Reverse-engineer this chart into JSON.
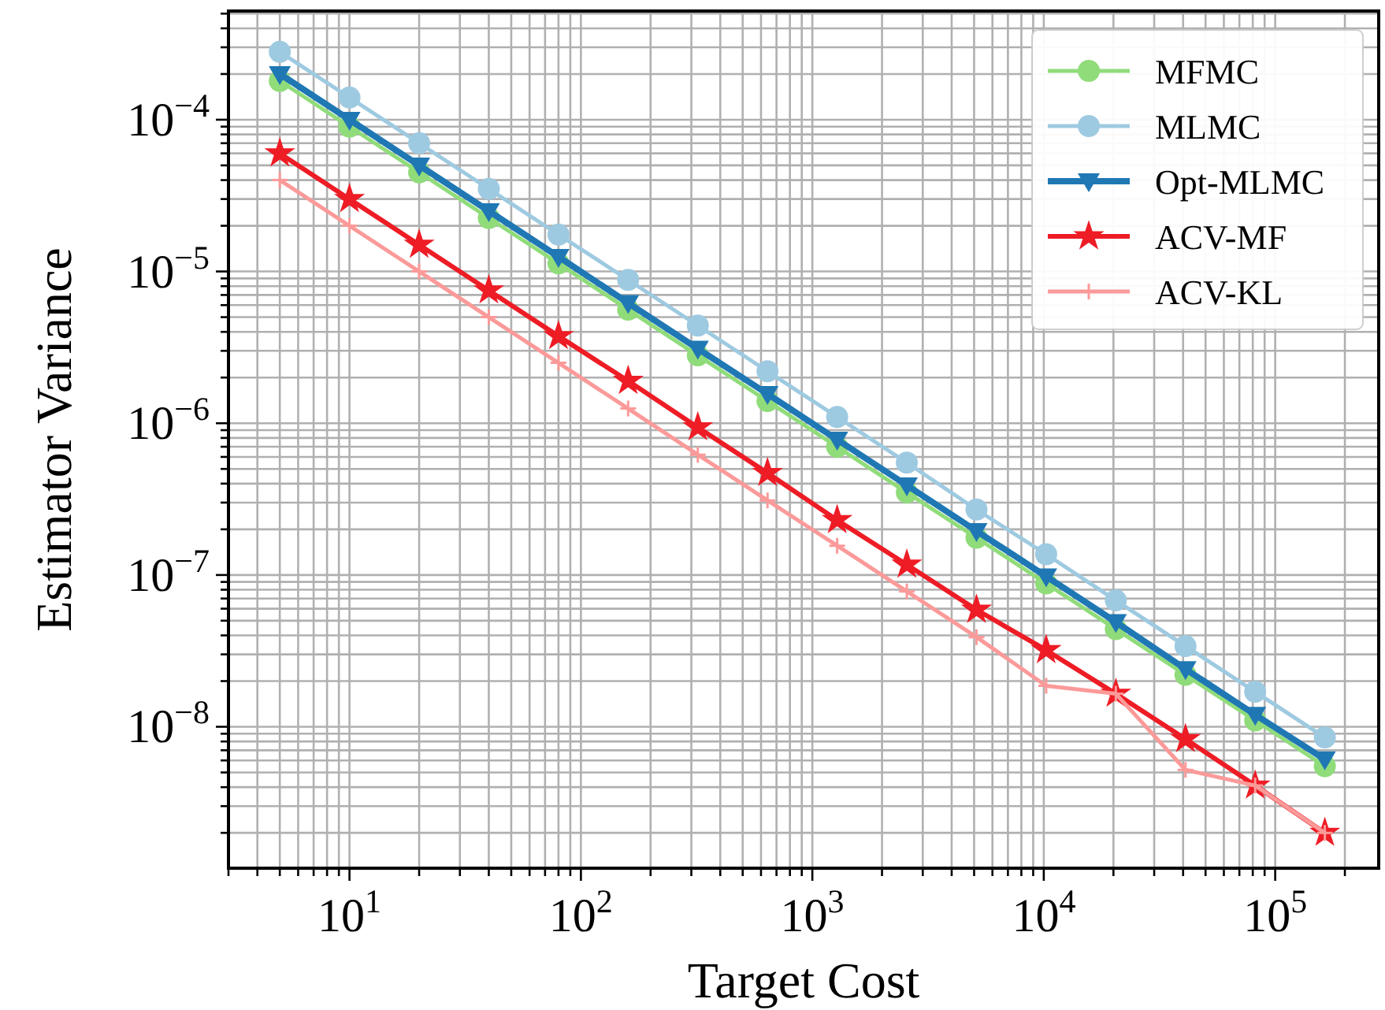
{
  "chart_data": {
    "type": "line",
    "xlabel": "Target Cost",
    "ylabel": "Estimator Variance",
    "log": "xy",
    "grid": true,
    "legend": "top right",
    "xlim": [
      3,
      280000
    ],
    "ylim": [
      1.17e-09,
      0.00052
    ],
    "xticks": [
      {
        "value": 3,
        "label": null
      },
      {
        "value": 4,
        "label": null
      },
      {
        "value": 5,
        "label": null
      },
      {
        "value": 6,
        "label": null
      },
      {
        "value": 7,
        "label": null
      },
      {
        "value": 8,
        "label": null
      },
      {
        "value": 9,
        "label": null
      },
      {
        "value": 10,
        "label": "10$^{1}$"
      },
      {
        "value": 20,
        "label": null
      },
      {
        "value": 30,
        "label": null
      },
      {
        "value": 40,
        "label": null
      },
      {
        "value": 50,
        "label": null
      },
      {
        "value": 60,
        "label": null
      },
      {
        "value": 70,
        "label": null
      },
      {
        "value": 80,
        "label": null
      },
      {
        "value": 90,
        "label": null
      },
      {
        "value": 100,
        "label": "10$^{2}$"
      },
      {
        "value": 200,
        "label": null
      },
      {
        "value": 300,
        "label": null
      },
      {
        "value": 400,
        "label": null
      },
      {
        "value": 500,
        "label": null
      },
      {
        "value": 600,
        "label": null
      },
      {
        "value": 700,
        "label": null
      },
      {
        "value": 800,
        "label": null
      },
      {
        "value": 900,
        "label": null
      },
      {
        "value": 1000,
        "label": "10$^{3}$"
      },
      {
        "value": 2000,
        "label": null
      },
      {
        "value": 3000,
        "label": null
      },
      {
        "value": 4000,
        "label": null
      },
      {
        "value": 5000,
        "label": null
      },
      {
        "value": 6000,
        "label": null
      },
      {
        "value": 7000,
        "label": null
      },
      {
        "value": 8000,
        "label": null
      },
      {
        "value": 9000,
        "label": null
      },
      {
        "value": 10000,
        "label": "10$^{4}$"
      },
      {
        "value": 20000,
        "label": null
      },
      {
        "value": 30000,
        "label": null
      },
      {
        "value": 40000,
        "label": null
      },
      {
        "value": 50000,
        "label": null
      },
      {
        "value": 60000,
        "label": null
      },
      {
        "value": 70000,
        "label": null
      },
      {
        "value": 80000,
        "label": null
      },
      {
        "value": 90000,
        "label": null
      },
      {
        "value": 100000,
        "label": "10$^{5}$"
      },
      {
        "value": 200000,
        "label": null
      }
    ],
    "yticks": [
      {
        "value": 2e-09,
        "label": null
      },
      {
        "value": 3e-09,
        "label": null
      },
      {
        "value": 4e-09,
        "label": null
      },
      {
        "value": 5e-09,
        "label": null
      },
      {
        "value": 6e-09,
        "label": null
      },
      {
        "value": 7e-09,
        "label": null
      },
      {
        "value": 8e-09,
        "label": null
      },
      {
        "value": 9e-09,
        "label": null
      },
      {
        "value": 1e-08,
        "label": "10$^{−8}$"
      },
      {
        "value": 2e-08,
        "label": null
      },
      {
        "value": 3e-08,
        "label": null
      },
      {
        "value": 4e-08,
        "label": null
      },
      {
        "value": 5e-08,
        "label": null
      },
      {
        "value": 6e-08,
        "label": null
      },
      {
        "value": 7e-08,
        "label": null
      },
      {
        "value": 8e-08,
        "label": null
      },
      {
        "value": 9e-08,
        "label": null
      },
      {
        "value": 1e-07,
        "label": "10$^{−7}$"
      },
      {
        "value": 2e-07,
        "label": null
      },
      {
        "value": 3e-07,
        "label": null
      },
      {
        "value": 4e-07,
        "label": null
      },
      {
        "value": 5e-07,
        "label": null
      },
      {
        "value": 6e-07,
        "label": null
      },
      {
        "value": 7e-07,
        "label": null
      },
      {
        "value": 8e-07,
        "label": null
      },
      {
        "value": 9e-07,
        "label": null
      },
      {
        "value": 1e-06,
        "label": "10$^{−6}$"
      },
      {
        "value": 2e-06,
        "label": null
      },
      {
        "value": 3e-06,
        "label": null
      },
      {
        "value": 4e-06,
        "label": null
      },
      {
        "value": 5e-06,
        "label": null
      },
      {
        "value": 6e-06,
        "label": null
      },
      {
        "value": 7e-06,
        "label": null
      },
      {
        "value": 8e-06,
        "label": null
      },
      {
        "value": 9e-06,
        "label": null
      },
      {
        "value": 1e-05,
        "label": "10$^{−5}$"
      },
      {
        "value": 2e-05,
        "label": null
      },
      {
        "value": 3e-05,
        "label": null
      },
      {
        "value": 4e-05,
        "label": null
      },
      {
        "value": 5e-05,
        "label": null
      },
      {
        "value": 6e-05,
        "label": null
      },
      {
        "value": 7e-05,
        "label": null
      },
      {
        "value": 8e-05,
        "label": null
      },
      {
        "value": 9e-05,
        "label": null
      },
      {
        "value": 0.0001,
        "label": "10$^{−4}$"
      },
      {
        "value": 0.0002,
        "label": null
      },
      {
        "value": 0.0003,
        "label": null
      },
      {
        "value": 0.0004,
        "label": null
      },
      {
        "value": 0.0005,
        "label": null
      }
    ],
    "x": [
      5,
      10,
      20,
      40,
      80,
      160,
      320,
      640,
      1280,
      2560,
      5120,
      10240,
      20480,
      40960,
      81920,
      163840
    ],
    "series": [
      {
        "name": "MFMC",
        "color": "#90dc7a",
        "marker": "circle",
        "values": [
          0.00018,
          9e-05,
          4.5e-05,
          2.25e-05,
          1.13e-05,
          5.6e-06,
          2.8e-06,
          1.4e-06,
          7e-07,
          3.5e-07,
          1.76e-07,
          8.8e-08,
          4.4e-08,
          2.2e-08,
          1.1e-08,
          5.5e-09
        ]
      },
      {
        "name": "MLMC",
        "color": "#9ecae1",
        "marker": "circle",
        "values": [
          0.00028,
          0.00014,
          7e-05,
          3.5e-05,
          1.75e-05,
          8.8e-06,
          4.4e-06,
          2.2e-06,
          1.1e-06,
          5.5e-07,
          2.7e-07,
          1.37e-07,
          6.8e-08,
          3.4e-08,
          1.7e-08,
          8.5e-09
        ]
      },
      {
        "name": "Opt-MLMC",
        "color": "#1f78b4",
        "marker": "triangle",
        "values": [
          0.0002,
          0.0001,
          5e-05,
          2.5e-05,
          1.25e-05,
          6.2e-06,
          3.1e-06,
          1.56e-06,
          7.8e-07,
          3.9e-07,
          1.95e-07,
          9.8e-08,
          4.9e-08,
          2.4e-08,
          1.2e-08,
          6.1e-09
        ]
      },
      {
        "name": "ACV-MF",
        "color": "#ee1c25",
        "marker": "star",
        "values": [
          6e-05,
          3e-05,
          1.5e-05,
          7.5e-06,
          3.75e-06,
          1.9e-06,
          9.4e-07,
          4.7e-07,
          2.3e-07,
          1.17e-07,
          5.9e-08,
          3.2e-08,
          1.65e-08,
          8.3e-09,
          4.1e-09,
          2e-09
        ]
      },
      {
        "name": "ACV-KL",
        "color": "#fb9a99",
        "marker": "cross",
        "values": [
          4e-05,
          2e-05,
          1e-05,
          5e-06,
          2.5e-06,
          1.25e-06,
          6.2e-07,
          3.1e-07,
          1.56e-07,
          7.8e-08,
          3.9e-08,
          1.86e-08,
          1.65e-08,
          5.2e-09,
          4.1e-09,
          2e-09
        ]
      }
    ]
  }
}
